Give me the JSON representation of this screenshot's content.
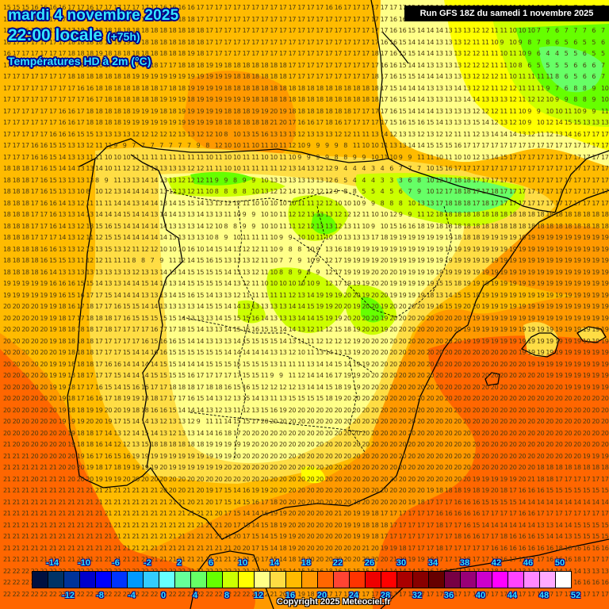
{
  "header": {
    "date_line": "mardi 4 novembre 2025",
    "time_line": "22:00 locale",
    "lead_time": "(+75h)",
    "product": "Températures HD à 2m (°C)",
    "run_info": "Run GFS 18Z du samedi 1 novembre 2025"
  },
  "footer": {
    "copyright": "Copyright 2025 Meteociel.fr"
  },
  "legend": {
    "top_labels": [
      -14,
      -10,
      -6,
      -2,
      2,
      6,
      10,
      14,
      18,
      22,
      26,
      30,
      34,
      38,
      42,
      46,
      50
    ],
    "bottom_labels": [
      -12,
      -8,
      -4,
      0,
      4,
      8,
      12,
      16,
      20,
      24,
      28,
      32,
      36,
      40,
      44,
      48,
      52
    ],
    "colors": [
      "#001040",
      "#003366",
      "#003399",
      "#0000cc",
      "#0000ff",
      "#0033ff",
      "#0099ff",
      "#33ccff",
      "#66ffff",
      "#66ff99",
      "#66ff66",
      "#66ff00",
      "#ccff00",
      "#ffff00",
      "#ffff88",
      "#ffdd44",
      "#ffbb00",
      "#ff9900",
      "#ff6600",
      "#ff4433",
      "#ff3300",
      "#ee0000",
      "#ff0000",
      "#aa0000",
      "#880000",
      "#660000",
      "#770044",
      "#990077",
      "#cc00cc",
      "#ff00ff",
      "#ff44ff",
      "#ff88ff",
      "#ffaaff",
      "#ffffff"
    ]
  },
  "map": {
    "region": "Péninsule Ibérique, sud-ouest de la France, Baléares",
    "grid_origin": [
      4,
      6
    ],
    "grid_step": [
      11.6,
      14.5
    ],
    "grid_rows": [
      "15 15 15 16 16 16 16 17 17 16 17 17 17 17 17 17 17 16 16 16 16 17 17 17 17 17 17 17 17 17 17 17 17 17 17 16 16 17 17 17 17 17 17 17 15 15 15 14 13 13 13 13 13 13 12 11 11 11 10 8 10 8 7 9 8 7",
      "15 15 16 16 16 17 17 17 18 17 17 17 17 17 17 17 17 18 18 18 18 17 17 17 17 17 17 17 17 17 17 17 17 17 17 17 17 17 17 17 17 17 16 16 15 15 14 14 13 13 13 13 12 12 11 11 10 8 10 8 7 9 8 7 9 7",
      "15 15 16 16 16 17 17 17 18 18 18 18 18 18 18 18 18 18 18 18 18 18 17 17 17 17 17 17 17 17 17 17 17 17 17 17 17 17 17 17 17 17 16 16 15 14 14 14 13 13 13 12 12 11 11 10 10 10 7 7 6 7 7 7 6 7",
      "16 17 17 17 17 17 17 18 18 18 18 18 19 19 19 18 18 18 18 18 18 18 17 17 17 17 17 17 17 17 17 17 17 17 17 17 17 17 17 17 17 16 16 15 14 14 14 13 13 13 12 11 11 10 9 10 9 8 7 8 6 5 6 5 5 6",
      "16 17 17 17 17 17 17 18 18 18 19 18 18 18 18 18 18 18 18 18 19 18 17 17 17 17 17 17 17 17 17 17 17 17 17 17 17 17 17 17 18 17 16 15 15 14 14 13 13 13 12 12 11 11 10 11 10 9 6 4 4 5 5 6 5 5",
      "17 17 17 17 17 17 18 17 18 16 16 17 17 17 17 18 18 17 17 18 18 18 19 19 18 18 18 18 18 18 18 17 17 17 17 17 17 17 17 17 17 16 16 15 14 14 13 13 13 13 12 12 12 11 11 10 8 6 5 5 5 5 6 6 6 7",
      "17 17 17 17 17 17 17 18 18 18 18 18 18 18 19 19 19 19 19 19 19 19 19 19 19 18 18 18 18 18 18 17 17 17 17 17 17 17 17 17 18 17 16 15 15 14 14 14 13 13 13 12 12 12 11 10 11 11 11 11 8 6 5 6 6 7",
      "17 17 17 17 17 17 17 17 16 16 18 18 18 18 18 18 18 17 18 18 19 19 19 19 18 18 18 18 18 18 18 18 18 18 18 18 18 18 18 18 18 17 15 14 14 14 13 13 13 14 13 12 12 11 12 12 11 11 11 9 7 6 8 8 9 10",
      "17 17 17 17 17 17 17 17 17 16 17 18 18 18 18 18 18 19 19 19 18 19 19 19 19 19 19 18 18 18 18 18 18 18 18 18 18 18 18 18 18 17 16 15 14 14 13 13 13 13 14 14 13 13 13 12 11 12 12 10 9 9 8 8 9 10",
      "17 17 17 17 17 17 16 16 17 18 18 18 18 18 19 19 19 18 18 19 19 19 19 19 18 18 18 19 19 20 19 18 18 18 18 18 18 18 17 17 17 17 16 15 14 14 14 13 13 13 13 12 12 12 11 11 10 9 9 10 10 11 10 9 9 11",
      "17 17 17 17 17 17 16 16 17 18 18 18 18 19 19 19 19 19 19 19 19 19 19 18 18 18 18 18 18 21 20 17 16 16 17 18 16 17 17 17 17 17 15 16 15 16 15 14 13 13 13 15 14 12 13 12 10 9 10 12 14 15 15 13 13 13",
      "17 17 17 17 17 16 16 16 15 15 13 13 13 13 12 12 12 12 12 13 13 12 12 10 8 10 13 15 16 13 13 13 12 13 13 13 12 12 11 11 13 14 12 13 13 12 13 12 12 11 11 12 13 14 14 14 13 12 11 12 13 14 16 17 17 17",
      "17 17 17 16 16 15 15 13 13 12 11 11 9 9 7 7 7 7 7 7 7 9 8 12 10 10 11 10 11 10 11 12 10 9 9 9 9 8 11 10 10 11 13 13 14 14 15 15 15 16 17 17 17 17 17 17 17 17 17 17 17 17 17 17 17 17",
      "17 17 17 16 16 15 14 13 13 11 11 10 10 10 11 11 11 11 11 11 11 11 10 11 10 10 11 11 10 10 11 10 9 9 9 9 8 8 9 9 10 11 10 9 9 11 11 10 11 10 10 12 13 14 15 17 17 17 17 17 17 17 17 17 17 17",
      "18 18 18 17 16 15 14 14 13 13 14 10 11 12 12 13 13 13 13 13 12 12 11 11 10 10 11 11 11 11 12 13 14 13 12 12 9 4 4 4 3 4 6 7 7 7 10 15 16 17 17 17 17 17 17 17 17 17 17 17 17 17 17 17 17 17",
      "18 18 18 17 16 15 13 13 13 13 8 9 11 13 13 14 14 13 13 12 12 12 11 9 9 8 9 9 10 13 13 13 13 13 13 12 6 5 4 4 4 3 3 3 6 8 10 12 17 18 18 17 17 17 17 17 17 17 17 17 17 17 17 17 17 17",
      "18 18 18 17 16 15 13 13 10 8 10 12 13 14 14 14 13 13 12 13 12 11 10 8 8 8 8 10 13 12 12 14 13 12 12 12 9 8 8 5 5 4 5 6 7 9 10 12 17 18 18 17 17 18 17 17 17 17 17 17 17 17 17 17 17 17",
      "18 18 18 17 16 16 14 13 12 11 11 11 14 14 13 14 14 13 14 15 15 14 13 13 12 12 11 10 10 10 10 10 11 11 12 12 10 10 10 9 9 8 8 8 10 13 13 17 18 18 18 17 18 17 17 17 17 17 17 17 17 17 17 17 17 17",
      "18 18 18 17 17 16 13 13 14 13 14 14 14 15 14 14 13 14 14 13 13 14 13 13 11 10 9 9 10 10 11 12 12 13 13 13 12 12 12 11 10 10 12 9 9 11 12 18 18 18 18 18 18 18 18 18 18 18 18 18 18 18 18 18 18 18",
      "18 18 18 17 17 16 14 13 12 13 15 16 15 14 14 14 14 14 13 13 13 14 12 10 8 8 9 9 10 10 11 11 12 12 13 13 12 13 11 10 9 10 15 16 16 18 19 18 18 18 18 18 18 18 18 18 18 18 18 18 18 18 18 18 18 18",
      "18 18 18 17 17 17 14 13 12 11 12 15 15 14 14 14 14 14 13 13 13 13 10 8 9 10 11 11 11 10 9 9 10 10 11 10 10 13 13 13 17 18 19 19 19 19 19 19 19 18 18 18 19 19 19 19 19 19 19 19 19 19 19 19 19 19",
      "18 18 18 18 16 16 13 13 12 13 13 15 13 12 11 12 12 10 10 10 16 10 14 15 14 13 12 12 11 10 9 8 8 10 9 13 16 18 19 19 19 19 19 19 19 19 19 19 19 19 19 19 19 19 19 19 19 19 19 19 19 19 19 19 19 19",
      "18 18 18 18 16 15 15 13 11 12 12 11 11 11 8 8 7 9 11 12 14 15 16 15 13 13 13 12 11 10 7 7 9 10 9 12 17 19 19 19 19 20 19 19 19 19 19 19 19 19 19 19 19 19 19 19 19 19 19 19 19 19 19 19 19 19",
      "18 18 18 18 16 14 13 13 13 13 13 13 13 13 12 13 13 14 13 14 15 15 15 15 14 13 13 12 11 10 8 8 9 8 9 12 17 19 19 19 20 20 20 19 19 19 19 19 19 19 19 19 19 19 19 19 19 19 19 19 19 19 19 19 19 19",
      "19 19 19 19 19 16 16 16 15 15 14 13 13 14 14 15 14 13 13 14 15 15 15 15 14 13 12 11 10 10 10 10 10 10 9 12 17 19 19 19 20 20 19 19 19 19 19 15 15 18 19 19 19 19 19 19 19 19 19 19 19 19 19 19 19 19",
      "19 19 19 19 19 19 16 15 16 17 17 15 14 14 14 13 13 13 14 15 16 15 14 13 13 12 11 11 11 11 11 12 13 14 19 19 19 20 20 19 20 20 19 19 19 19 18 13 14 15 15 18 19 19 19 19 19 19 19 19 19 19 19 19 19 19",
      "20 20 20 20 19 19 18 16 17 18 17 17 16 15 15 14 14 13 13 13 13 14 15 15 14 14 13 13 13 13 13 14 14 15 19 19 20 20 19 20 20 19 20 20 20 20 19 16 15 19 20 20 19 19 19 19 19 19 19 19 19 19 19 19 19 19",
      "20 20 20 20 19 19 18 17 17 18 18 18 17 16 15 15 15 15 15 14 13 13 13 14 15 15 15 16 14 13 13 13 14 14 15 19 19 20 20 20 20 19 20 20 20 20 20 20 20 20 19 19 19 19 19 19 19 19 19 19 19 19 19 19 19 19",
      "20 20 20 20 20 19 18 18 18 18 17 18 17 17 17 17 16 17 17 18 15 14 13 13 14 15 15 16 15 15 14 14 13 12 11 12 15 18 19 20 20 19 20 20 20 20 20 20 20 20 19 19 19 19 19 19 19 19 19 19 19 19 19 19 19 19",
      "20 20 20 20 20 19 18 18 18 18 17 17 17 17 17 16 15 16 16 15 14 14 13 13 13 14 15 15 15 15 14 13 11 11 12 12 12 12 19 20 20 20 20 20 20 20 20 20 20 20 19 19 19 19 19 19 19 19 19 19 19 19 19 19 19 19",
      "20 20 20 20 20 20 19 18 18 18 17 17 17 15 14 14 16 16 15 15 15 15 15 15 14 14 14 14 14 13 13 12 10 11 13 14 13 13 19 20 20 20 20 20 20 20 20 20 20 20 20 20 20 20 20 20 19 19 19 19 19 19 19 19 19 19",
      "20 20 20 20 20 19 19 18 18 18 17 16 16 14 14 14 14 15 15 14 14 14 15 15 15 15 15 15 15 13 11 11 11 13 14 14 15 14 19 19 20 20 20 20 20 20 20 20 20 20 20 20 20 20 20 20 20 19 19 19 19 19 19 19 19 19",
      "20 20 20 20 20 19 19 18 18 17 17 17 15 14 14 14 15 15 15 15 16 17 17 17 17 17 15 15 11 9 9 11 12 14 14 16 17 19 19 20 20 20 20 20 20 20 20 20 20 20 20 20 20 20 20 20 20 20 20 19 19 19 19 19 19 19",
      "20 20 20 20 20 19 19 18 17 17 16 15 14 15 16 16 17 17 18 18 18 17 18 18 16 15 16 15 12 12 12 12 13 14 14 15 18 19 19 20 20 20 20 20 20 20 20 20 20 20 20 20 20 20 20 20 20 20 20 20 20 19 19 19 19 19",
      "20 20 20 20 20 20 19 18 17 16 16 17 18 19 19 18 18 17 17 17 16 15 14 13 12 13 15 14 13 11 13 15 15 15 15 18 19 20 20 20 20 20 20 20 20 20 20 20 20 20 20 20 20 20 20 20 20 20 20 20 20 20 20 20 20 20",
      "20 20 20 20 20 20 19 18 18 19 19 20 20 19 18 18 16 16 15 14 14 14 13 12 13 11 12 13 15 16 19 20 20 20 20 20 20 20 20 20 20 20 20 20 20 20 20 20 20 20 20 20 20 20 20 20 20 20 20 20 20 20 20 20 20 20",
      "20 20 20 20 20 20 19 19 19 20 20 19 17 15 14 14 13 12 13 13 12 9 11 11 14 15 15 17 20 20 20 20 20 20 20 20 20 20 20 20 20 20 20 20 20 20 20 20 20 20 20 20 20 20 20 20 20 20 20 20 20 20 20 20 20 20",
      "20 20 20 20 20 20 20 19 18 18 17 14 13 12 14 15 14 13 12 13 13 14 14 16 18 17 20 20 20 20 20 20 20 20 20 20 20 20 20 20 20 20 20 20 20 20 20 20 20 20 20 20 20 20 20 20 20 20 20 20 20 20 20 20 20 20",
      "21 20 20 20 20 20 20 19 18 18 16 14 12 12 13 15 18 18 18 18 18 18 19 19 19 19 19 20 20 20 20 20 20 20 20 20 20 20 20 20 20 20 20 20 20 20 20 20 20 20 20 20 20 20 20 20 20 20 20 20 20 20 20 20 20 20",
      "21 21 21 20 20 20 20 20 19 16 17 16 15 16 19 19 19 19 19 19 19 19 19 19 19 20 20 20 20 20 20 20 20 20 20 20 20 20 20 20 20 20 20 20 20 20 20 20 20 20 20 20 20 20 20 20 20 20 20 20 20 20 20 19 19 19",
      "21 21 21 21 21 21 20 20 20 19 18 17 18 19 19 19 19 20 19 19 19 19 19 19 20 20 20 20 20 20 20 20 20 20 20 20 20 20 20 20 20 20 20 20 20 20 20 20 20 20 20 20 20 20 20 20 20 20 18 18 18 18 18 18 18 18",
      "21 21 21 20 21 21 21 20 20 20 19 19 19 20 20 20 20 20 20 20 20 20 20 20 20 20 20 20 20 20 20 20 20 20 20 20 20 20 20 20 20 20 20 20 20 20 20 20 20 20 20 19 19 19 19 19 20 21 18 18 17 17 17 17 17 17",
      "21 21 21 21 21 21 21 21 21 21 21 21 21 21 21 21 21 20 20 20 21 20 19 17 15 14 16 19 19 20 20 20 20 20 20 20 20 20 20 20 20 20 20 20 20 20 19 18 18 18 19 18 19 20 18 17 16 16 16 15 15 15 15 15 15 15",
      "21 21 21 21 21 21 21 21 21 21 21 21 21 21 21 21 21 21 21 21 20 21 20 17 15 14 15 16 17 18 20 20 20 20 20 20 20 20 20 20 20 20 20 20 19 18 17 17 17 16 16 16 15 15 15 15 14 14 14 14 14 14 14 14 14 14",
      "21 21 21 21 21 21 21 21 21 21 21 21 21 21 21 21 21 21 21 21 21 21 21 20 17 15 14 14 16 19 19 20 20 20 20 20 21 20 19 19 18 17 17 17 17 17 17 16 16 16 16 16 17 17 17 17 16 16 17 17 17 17 17 17 17 17",
      "21 21 21 21 21 21 21 21 21 21 21 21 21 21 21 21 21 21 21 21 21 21 21 21 20 17 15 14 15 18 19 20 20 20 20 20 20 19 19 18 18 18 17 17 17 17 17 18 17 17 16 15 14 14 14 14 14 14 13 13 14 14 15 15 15 15",
      "21 21 21 21 21 21 21 21 21 21 21 21 21 21 21 21 21 21 21 21 21 21 21 21 21 20 17 15 14 15 19 19 20 20 20 20 20 20 19 19 18 17 17 17 17 17 17 17 17 18 16 16 17 17 18 16 16 16 15 14 14 13 15 15 15 15",
      "21 21 21 21 21 21 21 21 21 21 21 21 21 21 21 21 21 21 21 21 21 21 21 21 21 20 20 17 15 14 18 19 20 20 20 20 20 20 20 21 20 19 19 18 17 17 17 18 17 17 17 17 17 16 16 16 16 16 16 16 18 18 16 16 16 16",
      "21 21 21 21 21 21 21 21 21 21 21 21 21 21 21 21 21 21 21 21 21 21 21 21 21 21 21 20 17 15 14 18 19 20 20 20 20 20 20 20 20 20 21 20 19 19 18 17 17 17 18 17 17 17 16 17 17 17 17 16 16 16 18 17 17 17",
      "22 22 22 22 22 22 22 22 22 22 22 22 22 22 22 22 22 22 22 22 21 21 22 22 22 21 21 21 20 17 15 14 15 16 16 18 16 15 15 15 14 14 14 14 14 15 16 16 16 17 17 17 17 18 15 14 13 13 14 14 14 14 14 13 13 13",
      "22 22 22 22 22 22 22 22 22 22 22 22 22 22 22 22 22 22 22 22 22 22 22 22 22 22 22 21 21 20 18 16 16 16 16 17 17 17 17 17 17 17 17 17 17 17 17 17 17 17 17 17 18 17 17 17 17 18 17 17 17 18 16 16 16 16",
      "22 22 22 22 22 22 22 22 22 22 22 22 22 22 22 22 22 22 22 22 22 22 22 22 22 22 22 22 22 21 20 19 19 18 18 17 17 17 17 17 17 17 17 17 17 17 17 17 17 17 17 17 17 17 17 17 17 17 17 17 17 17 17 17 17 17"
    ]
  }
}
